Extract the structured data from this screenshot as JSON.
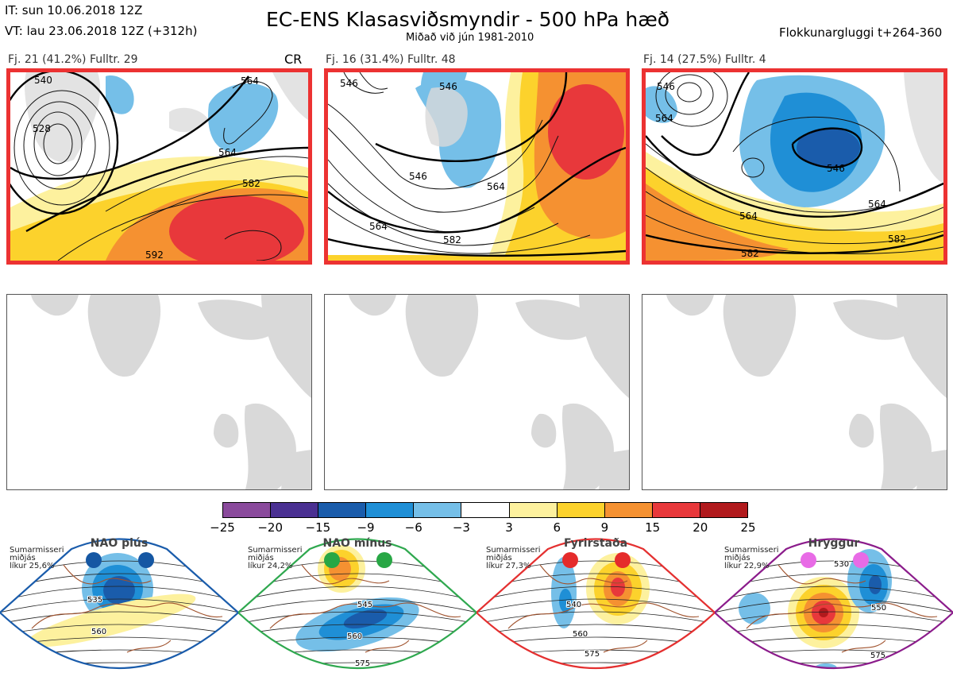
{
  "header": {
    "it_line": "IT: sun 10.06.2018 12Z",
    "vt_line": "VT: lau 23.06.2018 12Z  (+312h)",
    "title": "EC-ENS Klasasviðsmyndir - 500 hPa hæð",
    "subtitle": "Miðað við jún 1981-2010",
    "window": "Flokkunargluggi t+264-360"
  },
  "clusters": [
    {
      "caption": "Fj. 21 (41.2%)   Fulltr. 29",
      "tag": "CR",
      "highlighted": true,
      "contour_labels": [
        "540",
        "528",
        "564",
        "564",
        "582",
        "592"
      ]
    },
    {
      "caption": "Fj. 16 (31.4%)   Fulltr. 48",
      "tag": "",
      "highlighted": true,
      "contour_labels": [
        "546",
        "546",
        "546",
        "564",
        "564",
        "582"
      ]
    },
    {
      "caption": "Fj. 14 (27.5%)   Fulltr. 4",
      "tag": "",
      "highlighted": true,
      "contour_labels": [
        "546",
        "564",
        "546",
        "564",
        "564",
        "582",
        "582"
      ]
    }
  ],
  "empty_panels": 3,
  "colorbar": {
    "ticks": [
      "−25",
      "−20",
      "−15",
      "−9",
      "−6",
      "−3",
      "3",
      "6",
      "9",
      "15",
      "20",
      "25"
    ],
    "colors": [
      "#8a4a9c",
      "#4a3092",
      "#1a5cab",
      "#1f8fd6",
      "#75bfe8",
      "#ffffff",
      "#fdf19e",
      "#fcd22c",
      "#f59131",
      "#e8383b",
      "#b11a1d"
    ]
  },
  "regimes": [
    {
      "name": "NAO plús",
      "season": "Sumarmisseri",
      "sub": "miðjás",
      "prob": "líkur 25,6%",
      "dot_color": "#1557a3",
      "frame_color": "#1a5cab",
      "labels": [
        "535",
        "560"
      ]
    },
    {
      "name": "NAO mínus",
      "season": "Sumarmisseri",
      "sub": "miðjás",
      "prob": "líkur 24,2%",
      "dot_color": "#28a745",
      "frame_color": "#2fa84f",
      "labels": [
        "545",
        "560",
        "575"
      ]
    },
    {
      "name": "Fyrirstaða",
      "season": "Sumarmisseri",
      "sub": "miðjás",
      "prob": "líkur 27,3%",
      "dot_color": "#e52b2b",
      "frame_color": "#e43030",
      "labels": [
        "540",
        "560",
        "575"
      ]
    },
    {
      "name": "Hryggur",
      "season": "Sumarmisseri",
      "sub": "miðjás",
      "prob": "líkur 22,9%",
      "dot_color": "#e86be6",
      "frame_color": "#8b1c8b",
      "labels": [
        "530",
        "550",
        "575"
      ]
    }
  ]
}
